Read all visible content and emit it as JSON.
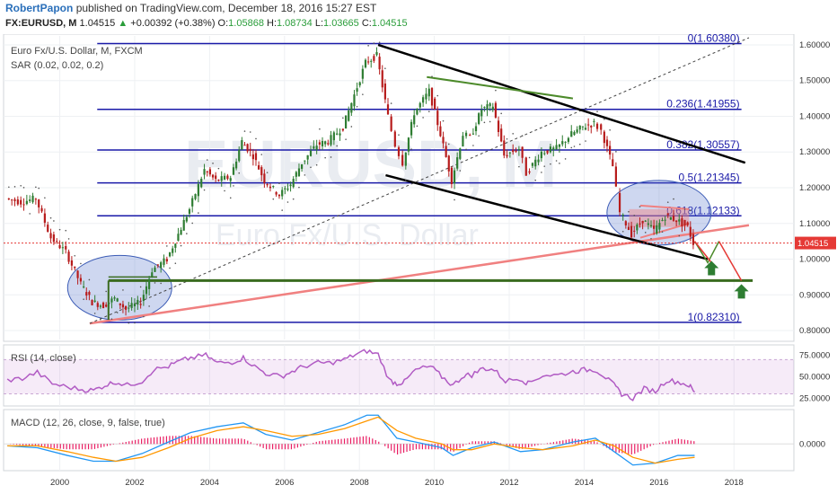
{
  "header": {
    "author": "RobertPapon",
    "published": "published on TradingView.com, December 18, 2016 15:27 EST",
    "symbol": "FX:EURUSD, M",
    "last": "1.04515",
    "change": "+0.00392 (+0.38%)",
    "open_label": "O:",
    "open": "1.05868",
    "high_label": "H:",
    "high": "1.08734",
    "low_label": "L:",
    "low": "1.03665",
    "close_label": "C:",
    "close": "1.04515"
  },
  "colors": {
    "fib": "#1a1aa8",
    "channel": "#000000",
    "trend": "#f08080",
    "support": "#3a6b1f",
    "up_candle": "#2e7d32",
    "down_candle": "#b71c1c",
    "rsi": "#b15bc4",
    "macd_fast": "#2196f3",
    "macd_signal": "#ff9800",
    "hist": "#e91e63",
    "arrow_up": "#2e7d32",
    "arrow_red": "#e53935"
  },
  "chart_data": {
    "type": "candlestick",
    "symbol_title": "Euro Fx/U.S. Dollar, M, FXCM",
    "indicator": "SAR (0.02, 0.02, 0.2)",
    "watermark_symbol": "EURUSD, M",
    "watermark_name": "Euro Fx/U.S. Dollar",
    "x_ticks": [
      "2000",
      "2002",
      "2004",
      "2006",
      "2008",
      "2010",
      "2012",
      "2014",
      "2016",
      "2018"
    ],
    "x_range": [
      1998.5,
      2019.6
    ],
    "y_ticks": [
      "1.60000",
      "1.50000",
      "1.40000",
      "1.30000",
      "1.20000",
      "1.10000",
      "1.00000",
      "0.90000",
      "0.80000"
    ],
    "y_range": [
      0.78,
      1.62
    ],
    "last_price": 1.04515,
    "last_price_label": "1.04515",
    "fib_levels": [
      {
        "ratio": "0",
        "price": 1.6038,
        "label": "0(1.60380)"
      },
      {
        "ratio": "0.236",
        "price": 1.41955,
        "label": "0.236(1.41955)"
      },
      {
        "ratio": "0.382",
        "price": 1.30557,
        "label": "0.382(1.30557)"
      },
      {
        "ratio": "0.5",
        "price": 1.21345,
        "label": "0.5(1.21345)"
      },
      {
        "ratio": "0.618",
        "price": 1.12133,
        "label": "0.618(1.12133)"
      },
      {
        "ratio": "1",
        "price": 0.8231,
        "label": "1(0.82310)"
      }
    ],
    "price_path": [
      [
        1998.6,
        1.17
      ],
      [
        1999.0,
        1.16
      ],
      [
        1999.4,
        1.17
      ],
      [
        1999.8,
        1.06
      ],
      [
        2000.2,
        1.02
      ],
      [
        2000.6,
        0.93
      ],
      [
        2000.9,
        0.88
      ],
      [
        2001.2,
        0.87
      ],
      [
        2001.5,
        0.89
      ],
      [
        2001.8,
        0.86
      ],
      [
        2002.2,
        0.88
      ],
      [
        2002.5,
        0.97
      ],
      [
        2002.9,
        1.0
      ],
      [
        2003.2,
        1.07
      ],
      [
        2003.5,
        1.14
      ],
      [
        2003.9,
        1.25
      ],
      [
        2004.2,
        1.22
      ],
      [
        2004.6,
        1.23
      ],
      [
        2004.9,
        1.33
      ],
      [
        2005.2,
        1.29
      ],
      [
        2005.5,
        1.22
      ],
      [
        2005.9,
        1.18
      ],
      [
        2006.2,
        1.21
      ],
      [
        2006.5,
        1.27
      ],
      [
        2006.9,
        1.32
      ],
      [
        2007.2,
        1.33
      ],
      [
        2007.6,
        1.37
      ],
      [
        2007.9,
        1.46
      ],
      [
        2008.2,
        1.55
      ],
      [
        2008.5,
        1.57
      ],
      [
        2008.8,
        1.4
      ],
      [
        2009.0,
        1.32
      ],
      [
        2009.2,
        1.27
      ],
      [
        2009.5,
        1.41
      ],
      [
        2009.9,
        1.47
      ],
      [
        2010.2,
        1.35
      ],
      [
        2010.5,
        1.22
      ],
      [
        2010.8,
        1.35
      ],
      [
        2011.0,
        1.34
      ],
      [
        2011.3,
        1.42
      ],
      [
        2011.6,
        1.43
      ],
      [
        2011.9,
        1.29
      ],
      [
        2012.3,
        1.31
      ],
      [
        2012.5,
        1.24
      ],
      [
        2012.9,
        1.3
      ],
      [
        2013.3,
        1.31
      ],
      [
        2013.7,
        1.35
      ],
      [
        2014.0,
        1.37
      ],
      [
        2014.3,
        1.38
      ],
      [
        2014.5,
        1.36
      ],
      [
        2014.8,
        1.26
      ],
      [
        2015.0,
        1.13
      ],
      [
        2015.3,
        1.07
      ],
      [
        2015.6,
        1.11
      ],
      [
        2015.9,
        1.08
      ],
      [
        2016.2,
        1.12
      ],
      [
        2016.5,
        1.11
      ],
      [
        2016.8,
        1.09
      ],
      [
        2016.95,
        1.045
      ]
    ],
    "rsi": {
      "label": "RSI (14, close)",
      "y_ticks": [
        "75.0000",
        "50.0000",
        "25.0000"
      ],
      "y_range": [
        18,
        85
      ],
      "band": [
        30,
        70
      ],
      "values": [
        [
          1998.6,
          46
        ],
        [
          1999.0,
          48
        ],
        [
          1999.4,
          55
        ],
        [
          1999.8,
          42
        ],
        [
          2000.2,
          38
        ],
        [
          2000.6,
          35
        ],
        [
          2000.9,
          34
        ],
        [
          2001.2,
          40
        ],
        [
          2001.5,
          44
        ],
        [
          2001.8,
          40
        ],
        [
          2002.2,
          45
        ],
        [
          2002.5,
          58
        ],
        [
          2002.9,
          62
        ],
        [
          2003.2,
          68
        ],
        [
          2003.5,
          72
        ],
        [
          2003.9,
          75
        ],
        [
          2004.2,
          66
        ],
        [
          2004.6,
          67
        ],
        [
          2004.9,
          72
        ],
        [
          2005.2,
          62
        ],
        [
          2005.5,
          54
        ],
        [
          2005.9,
          50
        ],
        [
          2006.2,
          56
        ],
        [
          2006.5,
          62
        ],
        [
          2006.9,
          66
        ],
        [
          2007.2,
          66
        ],
        [
          2007.6,
          70
        ],
        [
          2007.9,
          76
        ],
        [
          2008.2,
          80
        ],
        [
          2008.5,
          76
        ],
        [
          2008.8,
          46
        ],
        [
          2009.0,
          42
        ],
        [
          2009.2,
          44
        ],
        [
          2009.5,
          58
        ],
        [
          2009.9,
          62
        ],
        [
          2010.2,
          50
        ],
        [
          2010.5,
          40
        ],
        [
          2010.8,
          52
        ],
        [
          2011.0,
          52
        ],
        [
          2011.3,
          60
        ],
        [
          2011.6,
          58
        ],
        [
          2011.9,
          45
        ],
        [
          2012.3,
          48
        ],
        [
          2012.5,
          42
        ],
        [
          2012.9,
          52
        ],
        [
          2013.3,
          52
        ],
        [
          2013.7,
          56
        ],
        [
          2014.0,
          58
        ],
        [
          2014.3,
          58
        ],
        [
          2014.5,
          52
        ],
        [
          2014.8,
          40
        ],
        [
          2015.0,
          30
        ],
        [
          2015.3,
          25
        ],
        [
          2015.6,
          36
        ],
        [
          2015.9,
          33
        ],
        [
          2016.2,
          46
        ],
        [
          2016.5,
          44
        ],
        [
          2016.8,
          40
        ],
        [
          2016.95,
          32
        ]
      ]
    },
    "macd": {
      "label": "MACD (12, 26, close, 9, false, true)",
      "y_ticks": [
        "0.0000"
      ],
      "y_range": [
        -0.13,
        0.17
      ],
      "macd_line": [
        [
          1998.6,
          -0.01
        ],
        [
          1999.4,
          -0.02
        ],
        [
          2000.2,
          -0.06
        ],
        [
          2000.9,
          -0.09
        ],
        [
          2001.5,
          -0.09
        ],
        [
          2002.2,
          -0.05
        ],
        [
          2002.9,
          0.01
        ],
        [
          2003.5,
          0.06
        ],
        [
          2004.2,
          0.09
        ],
        [
          2004.9,
          0.11
        ],
        [
          2005.5,
          0.05
        ],
        [
          2006.2,
          0.02
        ],
        [
          2006.9,
          0.06
        ],
        [
          2007.6,
          0.1
        ],
        [
          2008.2,
          0.15
        ],
        [
          2008.5,
          0.15
        ],
        [
          2009.0,
          0.03
        ],
        [
          2009.5,
          0.01
        ],
        [
          2010.2,
          -0.02
        ],
        [
          2010.5,
          -0.06
        ],
        [
          2011.0,
          -0.02
        ],
        [
          2011.6,
          0.01
        ],
        [
          2012.3,
          -0.04
        ],
        [
          2012.9,
          -0.03
        ],
        [
          2013.7,
          0.01
        ],
        [
          2014.3,
          0.03
        ],
        [
          2014.8,
          -0.04
        ],
        [
          2015.3,
          -0.11
        ],
        [
          2015.9,
          -0.1
        ],
        [
          2016.5,
          -0.06
        ],
        [
          2016.95,
          -0.06
        ]
      ],
      "signal_line": [
        [
          1998.6,
          -0.01
        ],
        [
          1999.4,
          -0.01
        ],
        [
          2000.2,
          -0.04
        ],
        [
          2000.9,
          -0.07
        ],
        [
          2001.5,
          -0.09
        ],
        [
          2002.2,
          -0.07
        ],
        [
          2002.9,
          -0.02
        ],
        [
          2003.5,
          0.03
        ],
        [
          2004.2,
          0.07
        ],
        [
          2004.9,
          0.09
        ],
        [
          2005.5,
          0.07
        ],
        [
          2006.2,
          0.04
        ],
        [
          2006.9,
          0.05
        ],
        [
          2007.6,
          0.08
        ],
        [
          2008.2,
          0.12
        ],
        [
          2008.5,
          0.14
        ],
        [
          2009.0,
          0.07
        ],
        [
          2009.5,
          0.03
        ],
        [
          2010.2,
          0.0
        ],
        [
          2010.5,
          -0.03
        ],
        [
          2011.0,
          -0.03
        ],
        [
          2011.6,
          0.0
        ],
        [
          2012.3,
          -0.02
        ],
        [
          2012.9,
          -0.03
        ],
        [
          2013.7,
          -0.01
        ],
        [
          2014.3,
          0.02
        ],
        [
          2014.8,
          -0.01
        ],
        [
          2015.3,
          -0.07
        ],
        [
          2015.9,
          -0.1
        ],
        [
          2016.5,
          -0.08
        ],
        [
          2016.95,
          -0.07
        ]
      ]
    }
  }
}
